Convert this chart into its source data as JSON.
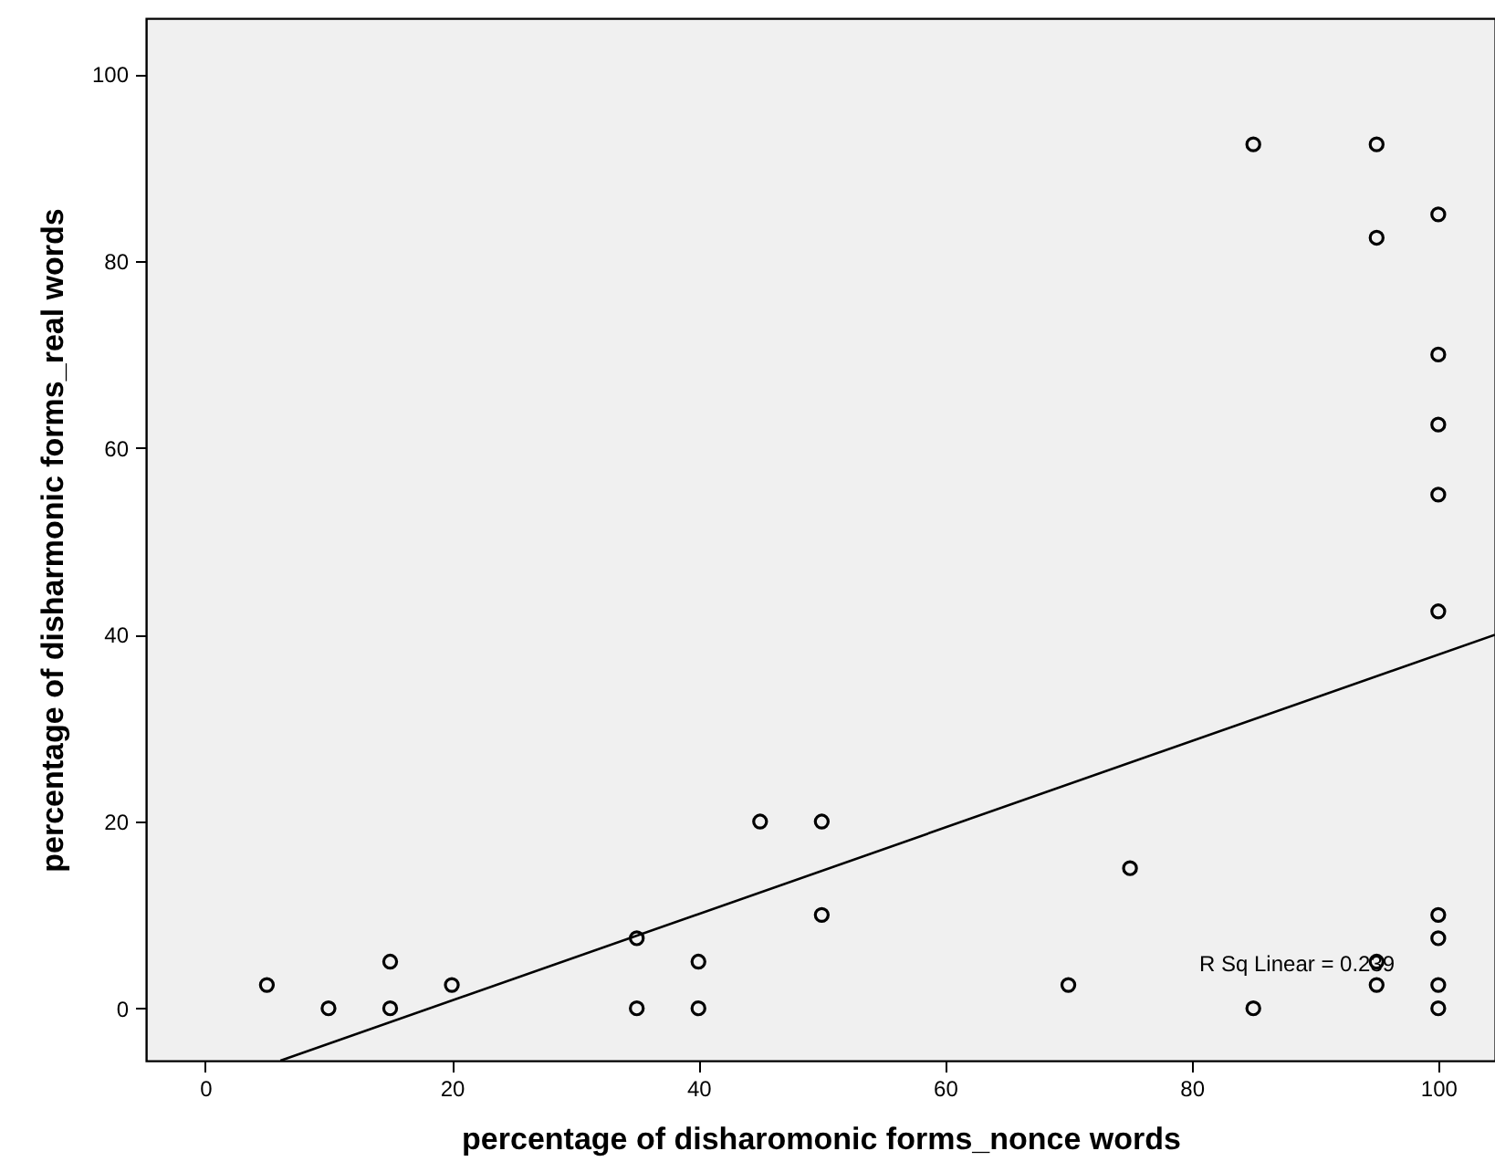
{
  "chart_data": {
    "type": "scatter",
    "xlabel": "percentage of disharomonic forms_nonce words",
    "ylabel": "percentage of disharmonic forms_real words",
    "xlim": [
      -4.8,
      104.6
    ],
    "ylim": [
      -5.6,
      106
    ],
    "xticks": [
      0,
      20,
      40,
      60,
      80,
      100
    ],
    "yticks": [
      0,
      20,
      40,
      60,
      80,
      100
    ],
    "grid": false,
    "series": [
      {
        "color": "#000000",
        "marker": "circle",
        "x": [
          5,
          10,
          15,
          15,
          20,
          35,
          35,
          40,
          40,
          45,
          50,
          50,
          70,
          75,
          85,
          85,
          95,
          95,
          95,
          95,
          100,
          100,
          100,
          100,
          100,
          100,
          100,
          100,
          100
        ],
        "values": [
          2.5,
          0,
          5,
          0,
          2.5,
          7.5,
          0,
          5,
          0,
          20,
          20,
          10,
          2.5,
          15,
          0,
          92.5,
          92.5,
          82.5,
          5,
          2.5,
          85,
          70,
          62.5,
          55,
          42.5,
          10,
          7.5,
          2.5,
          0
        ]
      },
      {
        "type": "line",
        "color": "#000000",
        "x": [
          6.1,
          104.6
        ],
        "values": [
          -5.6,
          40.0
        ]
      }
    ],
    "annotations": [
      "R Sq Linear = 0.239"
    ]
  }
}
